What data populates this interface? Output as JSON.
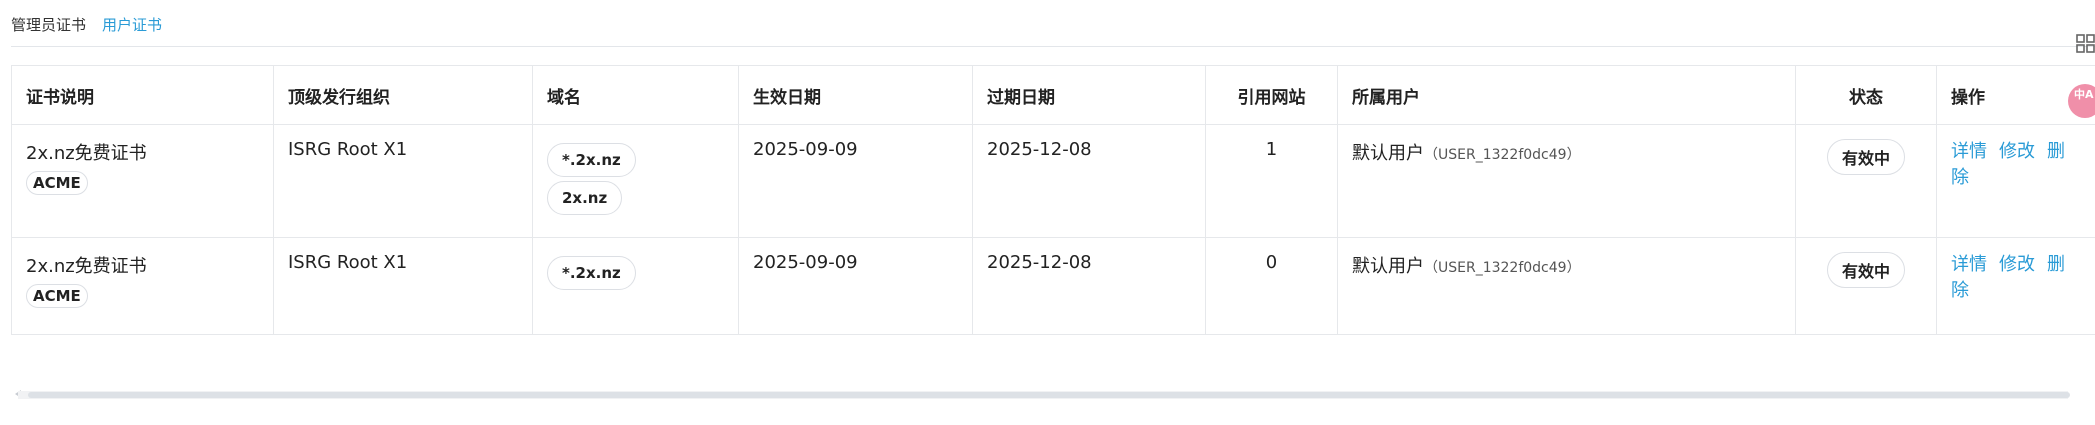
{
  "tabs": [
    {
      "label": "管理员证书",
      "active": false
    },
    {
      "label": "用户证书",
      "active": true
    }
  ],
  "table": {
    "headers": [
      "证书说明",
      "顶级发行组织",
      "域名",
      "生效日期",
      "过期日期",
      "引用网站",
      "所属用户",
      "状态",
      "操作"
    ],
    "rows": [
      {
        "description": "2x.nz免费证书",
        "badge": "ACME",
        "issuer": "ISRG Root X1",
        "domains": [
          "*.2x.nz",
          "2x.nz"
        ],
        "start_date": "2025-09-09",
        "end_date": "2025-12-08",
        "sites": "1",
        "user_name": "默认用户",
        "user_id": "（USER_1322f0dc49）",
        "status": "有效中",
        "actions": {
          "detail": "详情",
          "edit": "修改",
          "delete": "删除"
        }
      },
      {
        "description": "2x.nz免费证书",
        "badge": "ACME",
        "issuer": "ISRG Root X1",
        "domains": [
          "*.2x.nz"
        ],
        "start_date": "2025-09-09",
        "end_date": "2025-12-08",
        "sites": "0",
        "user_name": "默认用户",
        "user_id": "（USER_1322f0dc49）",
        "status": "有效中",
        "actions": {
          "detail": "详情",
          "edit": "修改",
          "delete": "删除"
        }
      }
    ]
  },
  "side_widgets": {
    "grid_icon": "grid-icon",
    "lang_label": "中A"
  },
  "colors": {
    "accent": "#2a9bd6",
    "lang_widget": "#f08fa9"
  }
}
